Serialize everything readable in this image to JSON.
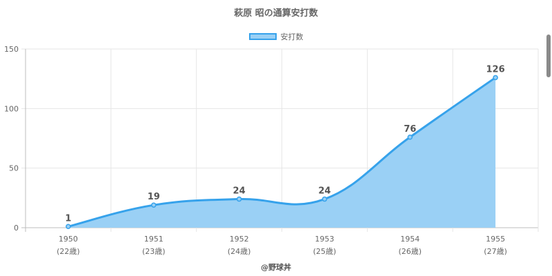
{
  "chart_data": {
    "type": "area",
    "title": "萩原 昭の通算安打数",
    "categories": [
      "1950",
      "1951",
      "1952",
      "1953",
      "1954",
      "1955"
    ],
    "category_sublabels": [
      "(22歳)",
      "(23歳)",
      "(24歳)",
      "(25歳)",
      "(26歳)",
      "(27歳)"
    ],
    "series": [
      {
        "name": "安打数",
        "values": [
          1,
          19,
          24,
          24,
          76,
          126
        ]
      }
    ],
    "data_labels": [
      "1",
      "19",
      "24",
      "24",
      "76",
      "126"
    ],
    "y_ticks": [
      "0",
      "50",
      "100",
      "150"
    ],
    "ylim": [
      0,
      150
    ],
    "grid": true,
    "legend_position": "top",
    "colors": {
      "line": "#36a2eb",
      "fill": "#9ad0f5"
    }
  },
  "footer": {
    "credit": "@野球丼"
  }
}
